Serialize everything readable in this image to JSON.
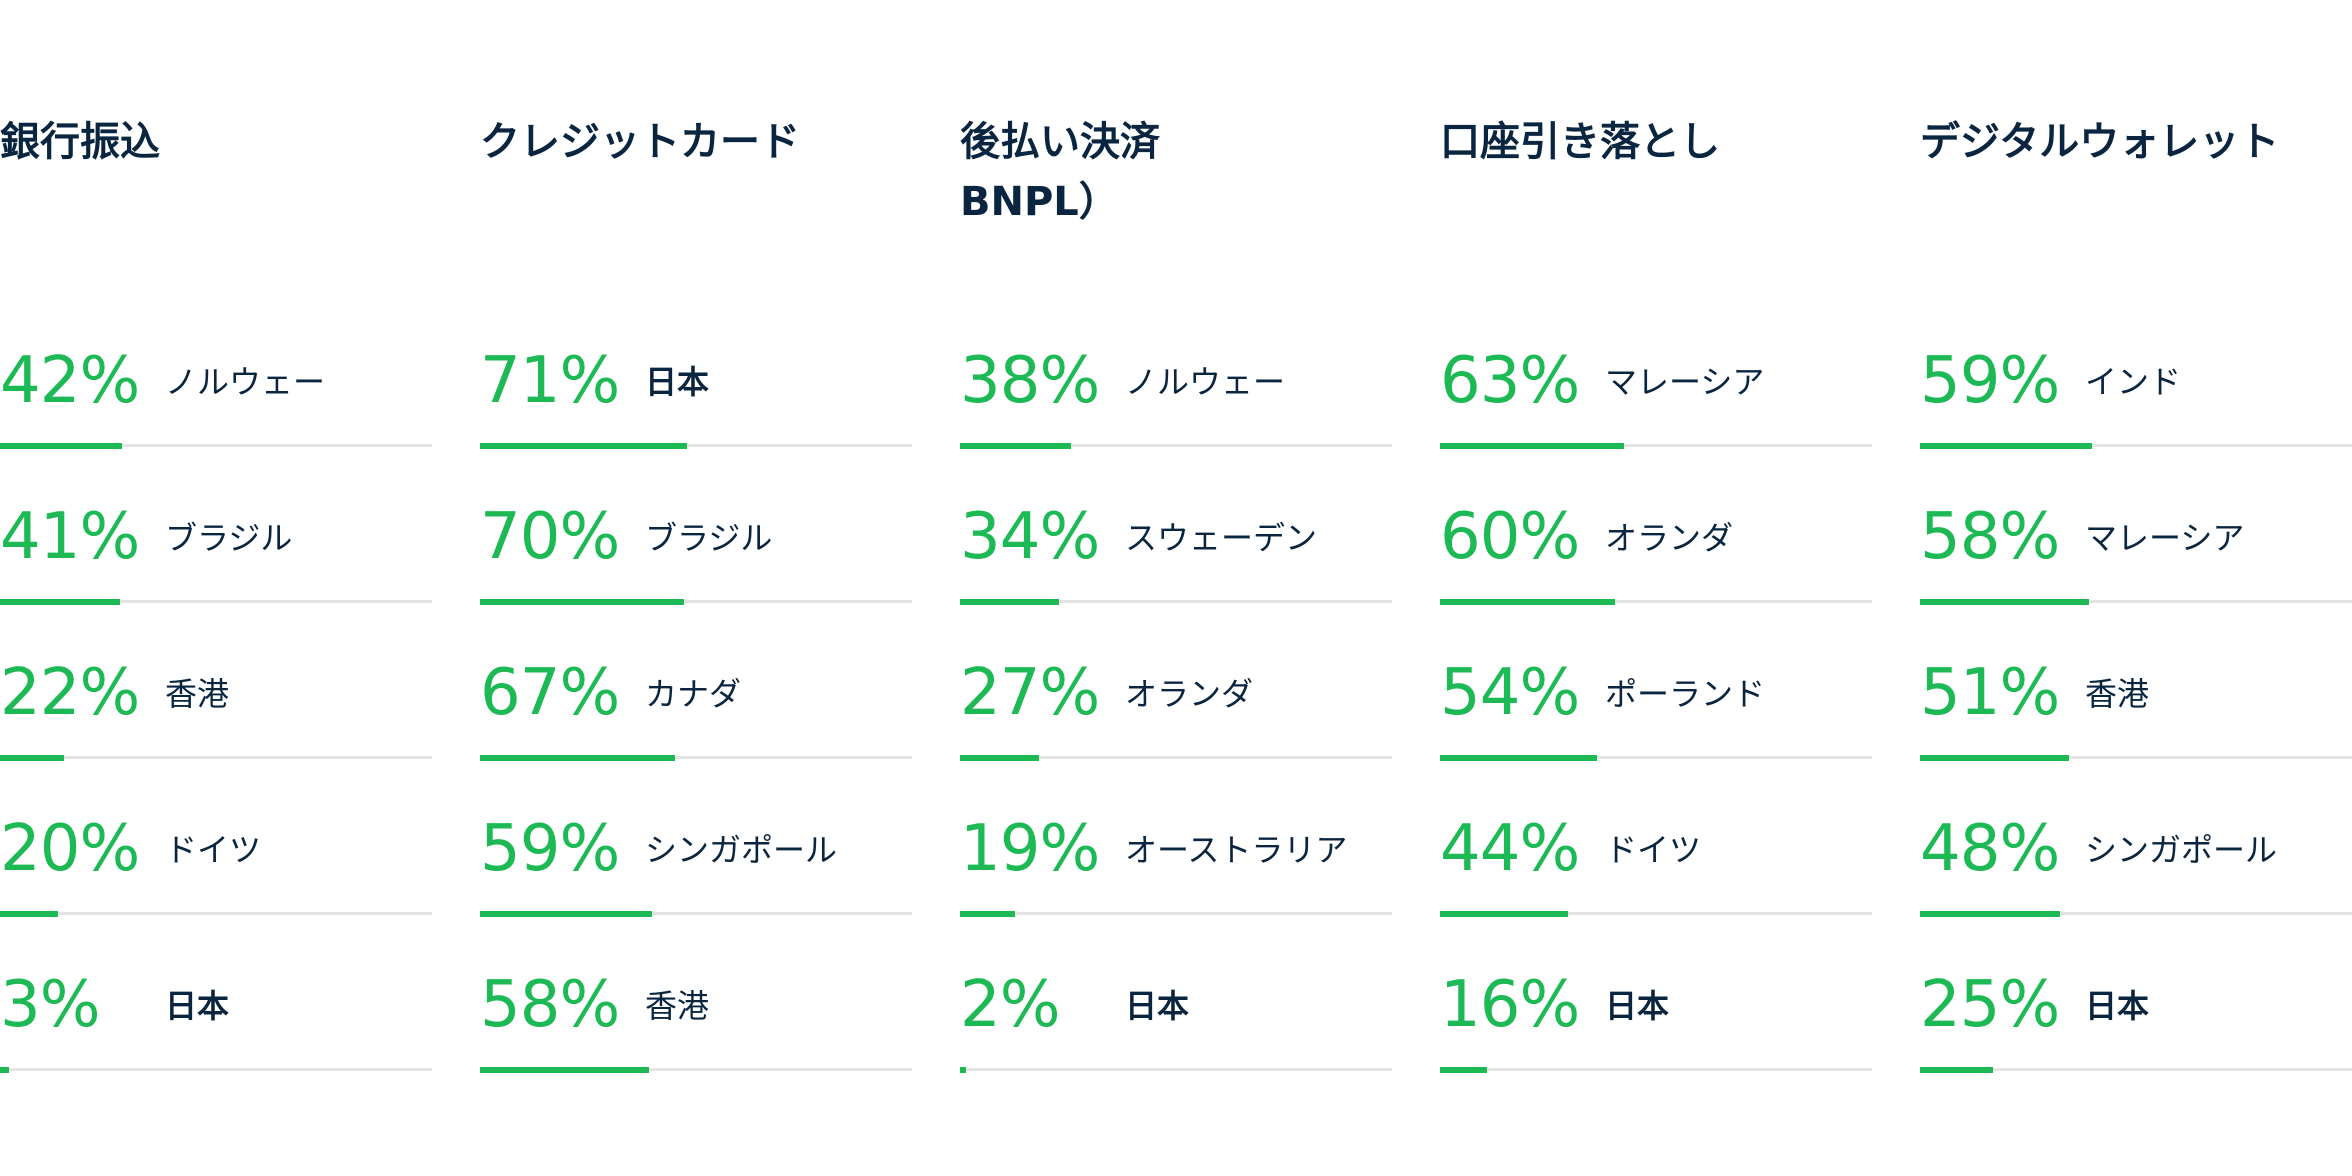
{
  "chart_data": {
    "type": "bar",
    "value_format": "percent",
    "range": [
      0,
      100
    ],
    "highlight_country": "日本",
    "colors": {
      "value": "#1db954",
      "track": "#e3e3e3",
      "text": "#0a2540"
    },
    "groups": [
      {
        "title": "銀行振込",
        "items": [
          {
            "country": "ノルウェー",
            "value": 42
          },
          {
            "country": "ブラジル",
            "value": 41
          },
          {
            "country": "香港",
            "value": 22
          },
          {
            "country": "ドイツ",
            "value": 20
          },
          {
            "country": "日本",
            "value": 3
          }
        ]
      },
      {
        "title": "クレジットカード",
        "items": [
          {
            "country": "日本",
            "value": 71
          },
          {
            "country": "ブラジル",
            "value": 70
          },
          {
            "country": "カナダ",
            "value": 67
          },
          {
            "country": "シンガポール",
            "value": 59
          },
          {
            "country": "香港",
            "value": 58
          }
        ]
      },
      {
        "title": "後払い決済\nBNPL）",
        "items": [
          {
            "country": "ノルウェー",
            "value": 38
          },
          {
            "country": "スウェーデン",
            "value": 34
          },
          {
            "country": "オランダ",
            "value": 27
          },
          {
            "country": "オーストラリア",
            "value": 19
          },
          {
            "country": "日本",
            "value": 2
          }
        ]
      },
      {
        "title": "口座引き落とし",
        "items": [
          {
            "country": "マレーシア",
            "value": 63
          },
          {
            "country": "オランダ",
            "value": 60
          },
          {
            "country": "ポーランド",
            "value": 54
          },
          {
            "country": "ドイツ",
            "value": 44
          },
          {
            "country": "日本",
            "value": 16
          }
        ]
      },
      {
        "title": "デジタルウォレット",
        "items": [
          {
            "country": "インド",
            "value": 59
          },
          {
            "country": "マレーシア",
            "value": 58
          },
          {
            "country": "香港",
            "value": 51
          },
          {
            "country": "シンガポール",
            "value": 48
          },
          {
            "country": "日本",
            "value": 25
          }
        ]
      }
    ]
  }
}
